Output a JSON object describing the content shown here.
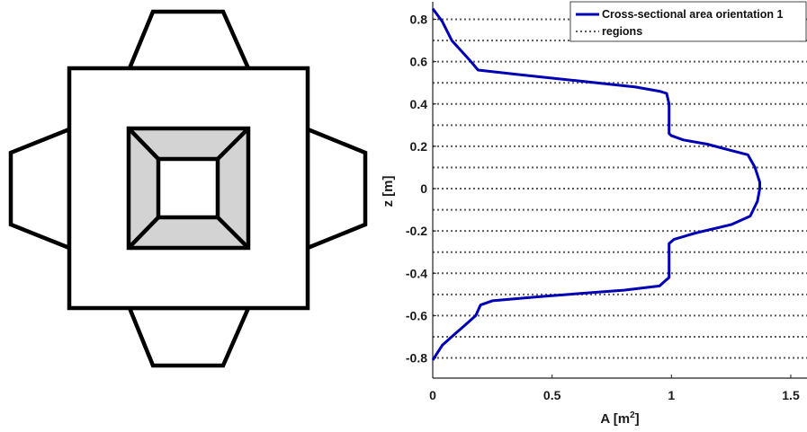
{
  "chart_data": [
    {
      "type": "diagram",
      "description_free": true,
      "colors": {
        "stroke": "#000000",
        "fill": "#ffffff",
        "inner_fill": "#d3d3d3"
      }
    },
    {
      "type": "line",
      "xlabel": "A",
      "xlabel_unit": "[m",
      "xlabel_unit_sup": "2",
      "xlabel_unit_close": "]",
      "ylabel": "z [m]",
      "xlim": [
        0,
        1.5
      ],
      "ylim": [
        -0.83,
        0.86
      ],
      "xticks": [
        0,
        0.5,
        1,
        1.5
      ],
      "xtick_labels": [
        "0",
        "0.5",
        "1",
        "1.5"
      ],
      "yticks": [
        -0.8,
        -0.6,
        -0.4,
        -0.2,
        0,
        0.2,
        0.4,
        0.6,
        0.8
      ],
      "ytick_labels": [
        "-0.8",
        "-0.6",
        "-0.4",
        "-0.2",
        "0",
        "0.2",
        "0.4",
        "0.6",
        "0.8"
      ],
      "legend_position": "top-right",
      "series": [
        {
          "name": "Cross-sectional area orientation 1",
          "color": "#0000b4",
          "style": "solid",
          "x": [
            0,
            0.04,
            0.08,
            0.12,
            0.16,
            0.19,
            0.35,
            0.6,
            0.85,
            0.95,
            0.98,
            0.99,
            0.99,
            0.99,
            1.0,
            1.05,
            1.15,
            1.25,
            1.32,
            1.35,
            1.37,
            1.37,
            1.36,
            1.33,
            1.25,
            1.1,
            1.01,
            0.99,
            0.99,
            0.99,
            0.98,
            0.95,
            0.8,
            0.45,
            0.25,
            0.2,
            0.18,
            0.13,
            0.08,
            0.04,
            0
          ],
          "y": [
            0.85,
            0.79,
            0.7,
            0.65,
            0.6,
            0.56,
            0.54,
            0.51,
            0.48,
            0.46,
            0.45,
            0.4,
            0.3,
            0.26,
            0.25,
            0.23,
            0.21,
            0.18,
            0.16,
            0.1,
            0.03,
            0.0,
            -0.06,
            -0.13,
            -0.17,
            -0.21,
            -0.24,
            -0.26,
            -0.35,
            -0.42,
            -0.43,
            -0.46,
            -0.48,
            -0.51,
            -0.53,
            -0.55,
            -0.6,
            -0.65,
            -0.7,
            -0.74,
            -0.81
          ]
        },
        {
          "name": "regions",
          "color": "#5a5a5a",
          "style": "dotted",
          "y_lines": [
            0.8,
            0.7,
            0.6,
            0.5,
            0.4,
            0.3,
            0.2,
            0.1,
            0,
            -0.1,
            -0.2,
            -0.3,
            -0.4,
            -0.5,
            -0.6,
            -0.7,
            -0.8
          ]
        }
      ]
    }
  ]
}
